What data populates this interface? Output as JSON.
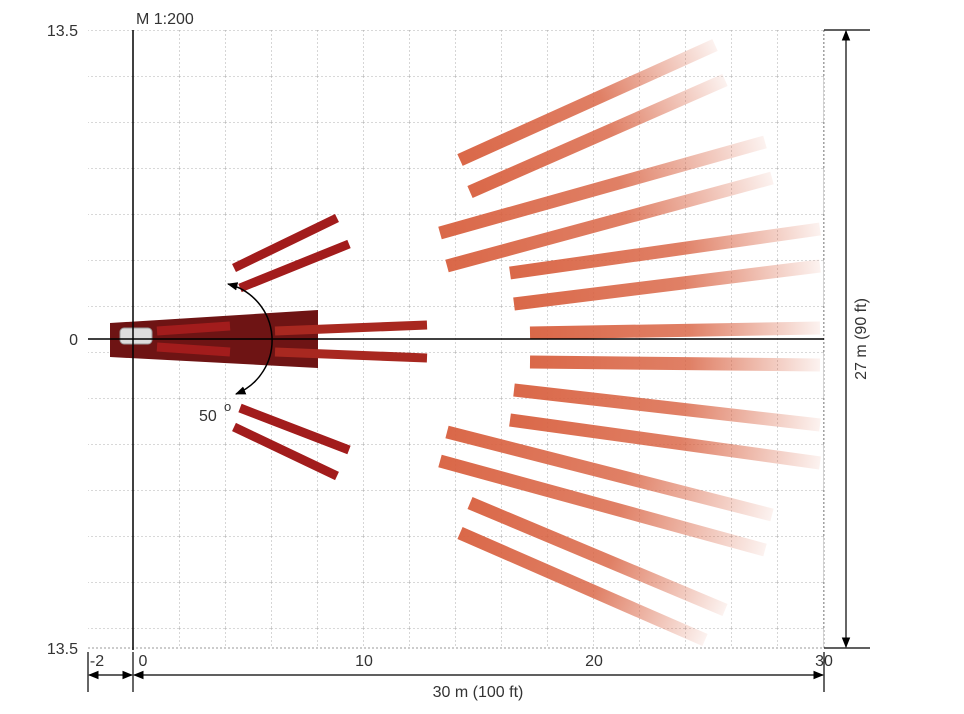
{
  "scale": "M 1:200",
  "y_labels": [
    "13.5",
    "0",
    "13.5"
  ],
  "x_labels": [
    "-2",
    "0",
    "10",
    "20",
    "30"
  ],
  "width_dimension": "30 m (100 ft)",
  "height_dimension": "27 m (90 ft)",
  "angle": {
    "value": "50",
    "unit": "o"
  }
}
